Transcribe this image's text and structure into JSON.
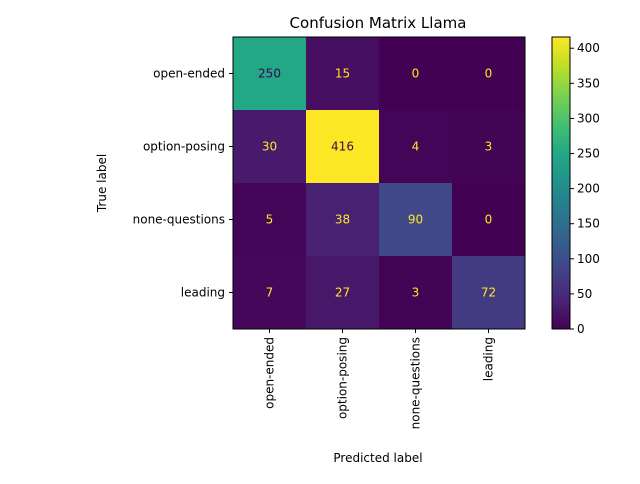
{
  "chart_data": {
    "type": "heatmap",
    "title": "Confusion Matrix Llama",
    "xlabel": "Predicted label",
    "ylabel": "True label",
    "x_categories": [
      "open-ended",
      "option-posing",
      "none-questions",
      "leading"
    ],
    "y_categories": [
      "open-ended",
      "option-posing",
      "none-questions",
      "leading"
    ],
    "values": [
      [
        250,
        15,
        0,
        0
      ],
      [
        30,
        416,
        4,
        3
      ],
      [
        5,
        38,
        90,
        0
      ],
      [
        7,
        27,
        3,
        72
      ]
    ],
    "colormap": "viridis",
    "color_range": [
      0,
      416
    ],
    "colorbar_ticks": [
      0,
      50,
      100,
      150,
      200,
      250,
      300,
      350,
      400
    ],
    "annotation_colors": {
      "on_dark": "#fde725",
      "on_light": "#440154"
    }
  }
}
